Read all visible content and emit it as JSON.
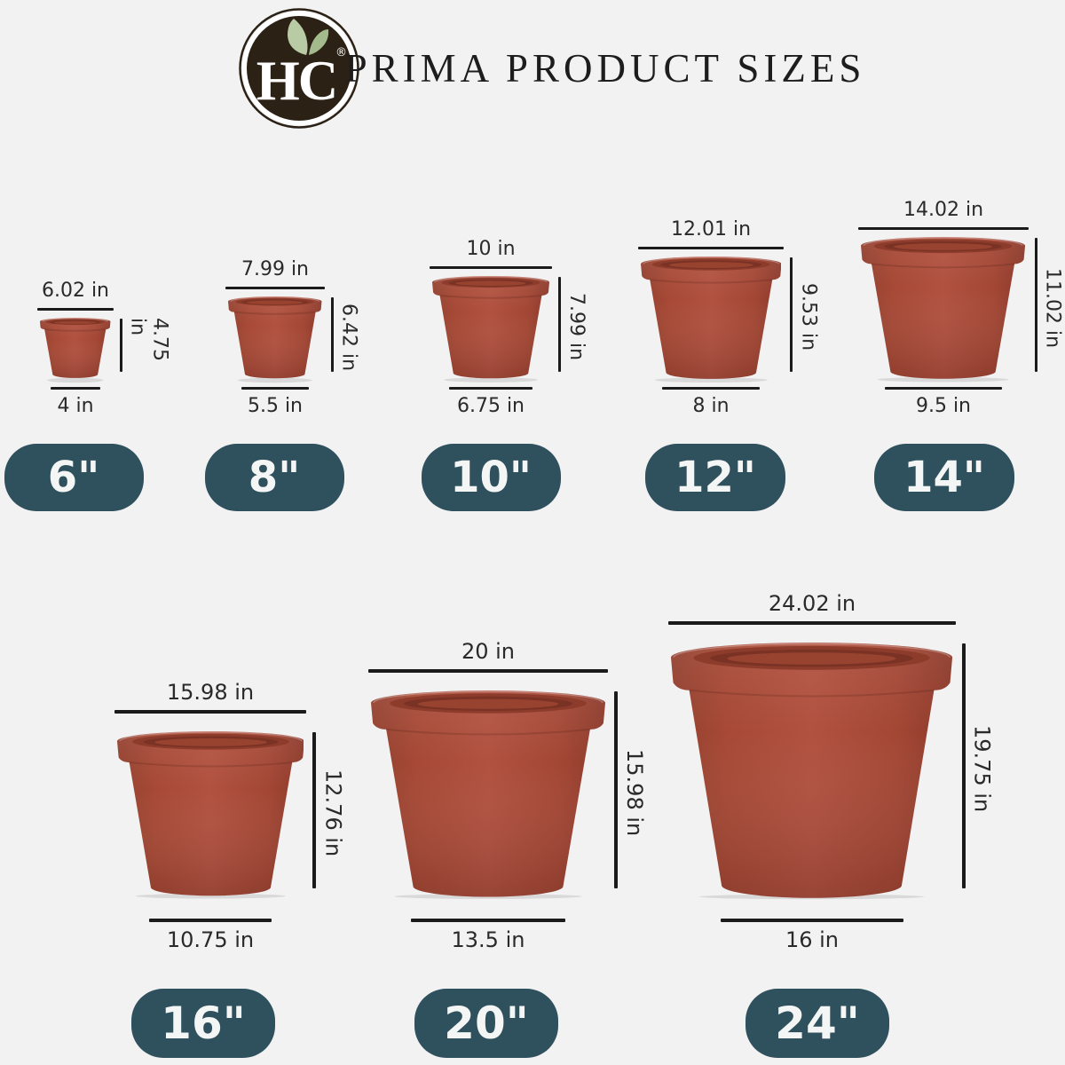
{
  "header": {
    "brand_initials": "HC",
    "registered_mark": "®",
    "title": "PRIMA PRODUCT SIZES"
  },
  "unit": "in",
  "colors": {
    "background": "#f2f2f3",
    "pot_terracotta": "#a84a38",
    "pot_inner_shadow": "#7a3224",
    "badge_teal": "#2f505d",
    "badge_text": "#f4f6f6",
    "dimension_line": "#1b1b1b",
    "label_text": "#2a2a2a",
    "logo_brown": "#2b2115",
    "leaf_green": "#b9cba4",
    "leaf_green_dark": "#a3bb8c"
  },
  "pots": [
    {
      "size_label": "6\"",
      "top_label": "6.02 in",
      "height_label": "4.75 in",
      "bottom_label": "4 in",
      "top_in": 6.02,
      "height_in": 4.75,
      "bottom_in": 4
    },
    {
      "size_label": "8\"",
      "top_label": "7.99 in",
      "height_label": "6.42 in",
      "bottom_label": "5.5 in",
      "top_in": 7.99,
      "height_in": 6.42,
      "bottom_in": 5.5
    },
    {
      "size_label": "10\"",
      "top_label": "10 in",
      "height_label": "7.99 in",
      "bottom_label": "6.75 in",
      "top_in": 10,
      "height_in": 7.99,
      "bottom_in": 6.75
    },
    {
      "size_label": "12\"",
      "top_label": "12.01 in",
      "height_label": "9.53 in",
      "bottom_label": "8 in",
      "top_in": 12.01,
      "height_in": 9.53,
      "bottom_in": 8
    },
    {
      "size_label": "14\"",
      "top_label": "14.02 in",
      "height_label": "11.02 in",
      "bottom_label": "9.5 in",
      "top_in": 14.02,
      "height_in": 11.02,
      "bottom_in": 9.5
    },
    {
      "size_label": "16\"",
      "top_label": "15.98 in",
      "height_label": "12.76 in",
      "bottom_label": "10.75 in",
      "top_in": 15.98,
      "height_in": 12.76,
      "bottom_in": 10.75
    },
    {
      "size_label": "20\"",
      "top_label": "20 in",
      "height_label": "15.98 in",
      "bottom_label": "13.5 in",
      "top_in": 20,
      "height_in": 15.98,
      "bottom_in": 13.5
    },
    {
      "size_label": "24\"",
      "top_label": "24.02 in",
      "height_label": "19.75 in",
      "bottom_label": "16 in",
      "top_in": 24.02,
      "height_in": 19.75,
      "bottom_in": 16
    }
  ]
}
